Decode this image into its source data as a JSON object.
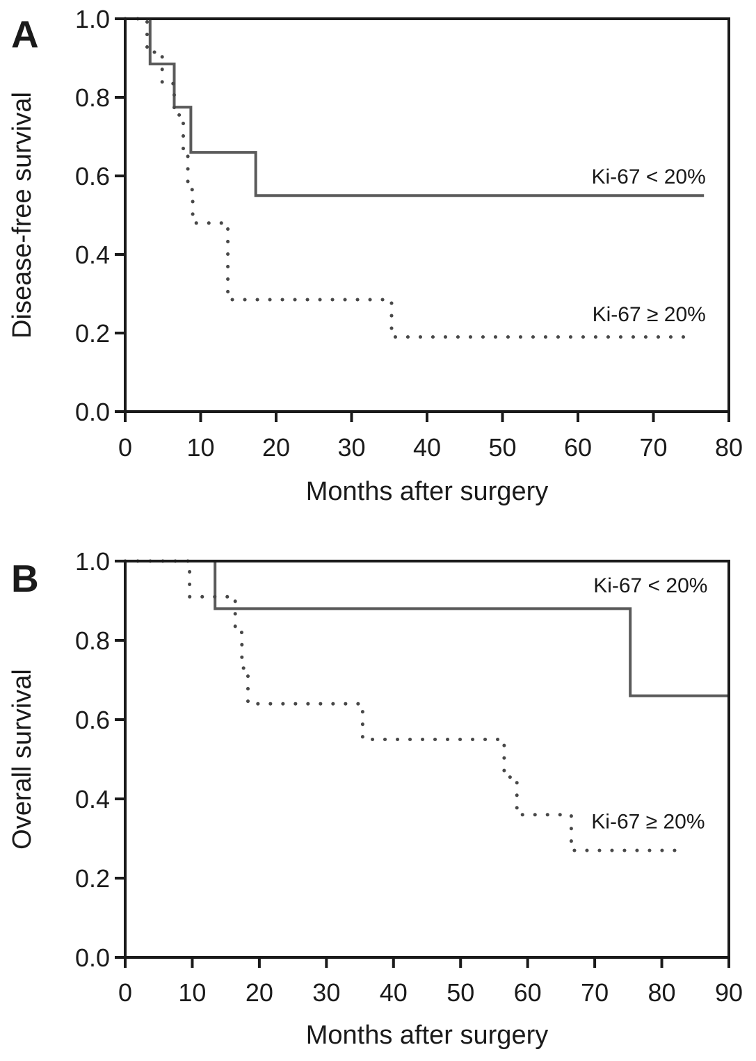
{
  "figure": {
    "description": "Kaplan-Meier survival curves by Ki-67 index",
    "colors": {
      "axis": "#1a1a1a",
      "background": "#ffffff",
      "solid_curve": "#5a5a5a",
      "dotted_curve": "#484848"
    }
  },
  "chart_data": [
    {
      "type": "line",
      "subtype": "kaplan_meier_step",
      "panel_label": "A",
      "title": "",
      "xlabel": "Months after surgery",
      "ylabel": "Disease-free survival",
      "xlim": [
        0,
        80
      ],
      "ylim": [
        0.0,
        1.0
      ],
      "xticks": [
        0,
        10,
        20,
        30,
        40,
        50,
        60,
        70,
        80
      ],
      "yticks": [
        0.0,
        0.2,
        0.4,
        0.6,
        0.8,
        1.0
      ],
      "ytick_labels": [
        "0.0",
        "0.2",
        "0.4",
        "0.6",
        "0.8",
        "1.0"
      ],
      "grid": false,
      "legend_position": "inline-right",
      "series": [
        {
          "name": "Ki-67 < 20%",
          "line_style": "solid",
          "color": "#5a5a5a",
          "x": [
            0,
            3.3,
            6.5,
            8.7,
            17.3,
            76.7
          ],
          "y": [
            1.0,
            0.885,
            0.775,
            0.66,
            0.55,
            0.55
          ],
          "label_pos": {
            "x": 61.8,
            "y": 0.6
          }
        },
        {
          "name": "Ki-67 ≥ 20%",
          "line_style": "dotted",
          "color": "#484848",
          "x": [
            0,
            2.9,
            4.9,
            6.5,
            7.7,
            8.3,
            8.95,
            13.6,
            35.3,
            75.6
          ],
          "y": [
            1.0,
            0.915,
            0.835,
            0.755,
            0.65,
            0.565,
            0.48,
            0.285,
            0.19,
            0.19
          ],
          "label_pos": {
            "x": 61.9,
            "y": 0.25
          }
        }
      ]
    },
    {
      "type": "line",
      "subtype": "kaplan_meier_step",
      "panel_label": "B",
      "title": "",
      "xlabel": "Months after surgery",
      "ylabel": "Overall survival",
      "xlim": [
        0,
        90
      ],
      "ylim": [
        0.0,
        1.0
      ],
      "xticks": [
        0,
        10,
        20,
        30,
        40,
        50,
        60,
        70,
        80,
        90
      ],
      "yticks": [
        0.0,
        0.2,
        0.4,
        0.6,
        0.8,
        1.0
      ],
      "ytick_labels": [
        "0.0",
        "0.2",
        "0.4",
        "0.6",
        "0.8",
        "1.0"
      ],
      "grid": false,
      "legend_position": "inline-right",
      "series": [
        {
          "name": "Ki-67 < 20%",
          "line_style": "solid",
          "color": "#5a5a5a",
          "x": [
            0,
            13.4,
            75.3,
            90
          ],
          "y": [
            1.0,
            0.88,
            0.66,
            0.66
          ],
          "label_pos": {
            "x": 69.8,
            "y": 0.94
          }
        },
        {
          "name": "Ki-67 ≥ 20%",
          "line_style": "dotted",
          "color": "#484848",
          "x": [
            0,
            9.6,
            16.4,
            17.4,
            18.3,
            35.4,
            56.5,
            58.4,
            66.5,
            83.2
          ],
          "y": [
            1.0,
            0.91,
            0.82,
            0.73,
            0.64,
            0.55,
            0.455,
            0.36,
            0.27,
            0.27
          ],
          "label_pos": {
            "x": 69.5,
            "y": 0.345
          }
        }
      ]
    }
  ]
}
